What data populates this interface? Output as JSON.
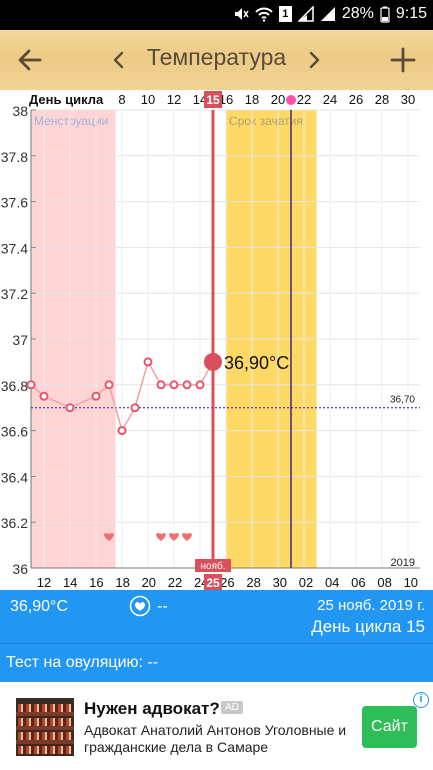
{
  "status_bar": {
    "battery": "28%",
    "time": "9:15",
    "sim": "1"
  },
  "toolbar": {
    "title": "Температура"
  },
  "chart_data": {
    "type": "line",
    "header_label": "День цикла",
    "top_ticks": [
      "8",
      "10",
      "12",
      "14",
      "16",
      "18",
      "20",
      "22",
      "24",
      "26",
      "28",
      "30"
    ],
    "selected_day_top": "15",
    "bottom_ticks": [
      "12",
      "14",
      "16",
      "18",
      "20",
      "22",
      "24",
      "26",
      "28",
      "30",
      "02",
      "04",
      "06",
      "08",
      "10"
    ],
    "selected_day_bottom": "25",
    "month_label": "нояб.",
    "year_label": "2019",
    "yaxis_ticks": [
      "36",
      "36.2",
      "36.4",
      "36.6",
      "36.8",
      "37",
      "37.2",
      "37.4",
      "37.6",
      "37.8",
      "38"
    ],
    "ylim": [
      36,
      38
    ],
    "x": [
      11,
      12,
      14,
      16,
      17,
      18,
      19,
      20,
      21,
      22,
      23,
      24,
      25
    ],
    "y": [
      36.8,
      36.75,
      36.7,
      36.75,
      36.8,
      36.6,
      36.7,
      36.9,
      36.8,
      36.8,
      36.8,
      36.8,
      36.9
    ],
    "selected_x": 25,
    "selected_value_label": "36,90°C",
    "coverline_value": 36.7,
    "coverline_label": "36,70",
    "menstruation_label": "Менструации",
    "menstruation_range": [
      11,
      16
    ],
    "fertile_label": "Срок зачатия",
    "fertile_range": [
      26,
      32
    ],
    "ovulation_day": 31,
    "heart_days": [
      17,
      21,
      22,
      23
    ],
    "colors": {
      "menstruation": "#ffd4d4",
      "fertile": "#ffd966",
      "line": "#f3a0a0",
      "marker": "#e8546a",
      "selected": "#d94f5c",
      "coverline": "#1a1aa8",
      "ovulation": "#3a2a7a",
      "heart": "#f07070",
      "ovulation_marker": "#ff4fb0"
    }
  },
  "info_bar": {
    "temperature": "36,90°C",
    "dash": "--",
    "date": "25 нояб. 2019 г.",
    "cycle_day": "День цикла 15"
  },
  "ovulation_test": {
    "label": "Тест на овуляцию: --"
  },
  "ad": {
    "headline": "Нужен адвокат?",
    "badge": "AD",
    "body": "Адвокат Анатолий Антонов Уголовные и гражданские дела в Самаре",
    "cta": "Сайт",
    "info": "i"
  }
}
